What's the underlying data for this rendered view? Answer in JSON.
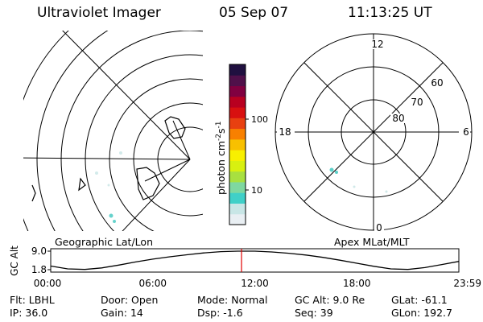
{
  "header": {
    "instrument": "Ultraviolet Imager",
    "date": "05 Sep 07",
    "time": "11:13:25 UT"
  },
  "left_panel_label": "Geographic Lat/Lon",
  "right_panel_label": "Apex MLat/MLT",
  "colorbar": {
    "label_main": "photon cm",
    "label_sup1": "-2",
    "label_s": "s",
    "label_sup2": "-1",
    "ticks": [
      {
        "label": "100",
        "value": 100
      },
      {
        "label": "10",
        "value": 10
      }
    ],
    "colors": [
      "#e9eff3",
      "#c8e6e6",
      "#40d0c8",
      "#7fd8a0",
      "#a8e040",
      "#d8f010",
      "#f8f000",
      "#f8c000",
      "#f88000",
      "#e84010",
      "#d81010",
      "#b80020",
      "#800040",
      "#50104a",
      "#201040"
    ]
  },
  "polar_labels": {
    "mlt_top": "12",
    "mlt_left": "18",
    "mlt_right": "6",
    "mlt_bottom": "0",
    "lat_60": "60",
    "lat_70": "70",
    "lat_80": "80"
  },
  "chart_data": {
    "type": "line",
    "ylabel": "GC Alt",
    "y_ticks": [
      "9.0",
      "1.8"
    ],
    "ylim": [
      1.8,
      9.0
    ],
    "x_ticks": [
      "00:00",
      "06:00",
      "12:00",
      "18:00",
      "23:59"
    ],
    "x_hours": [
      0,
      1,
      2,
      3,
      4,
      5,
      6,
      7,
      8,
      9,
      10,
      11,
      12,
      13,
      14,
      15,
      16,
      17,
      18,
      19,
      20,
      21,
      22,
      23,
      23.98
    ],
    "altitude": [
      3.2,
      2.1,
      1.9,
      2.5,
      3.6,
      4.8,
      5.9,
      6.8,
      7.6,
      8.3,
      8.8,
      9.0,
      9.0,
      8.7,
      8.2,
      7.5,
      6.6,
      5.5,
      4.3,
      3.1,
      2.1,
      1.9,
      2.6,
      3.8,
      5.0
    ],
    "current_time_hour": 11.22,
    "current_time_color": "#e00000"
  },
  "info": {
    "row1": [
      {
        "label": "Flt:",
        "value": "LBHL"
      },
      {
        "label": "Door:",
        "value": "Open"
      },
      {
        "label": "Mode:",
        "value": "Normal"
      },
      {
        "label": "GC Alt:",
        "value": "9.0 Re"
      },
      {
        "label": "GLat:",
        "value": "-61.1"
      }
    ],
    "row2": [
      {
        "label": "IP:",
        "value": "36.0"
      },
      {
        "label": "Gain:",
        "value": "14"
      },
      {
        "label": "Dsp:",
        "value": "-1.6"
      },
      {
        "label": "Seq:",
        "value": "39"
      },
      {
        "label": "GLon:",
        "value": "192.7"
      }
    ]
  }
}
